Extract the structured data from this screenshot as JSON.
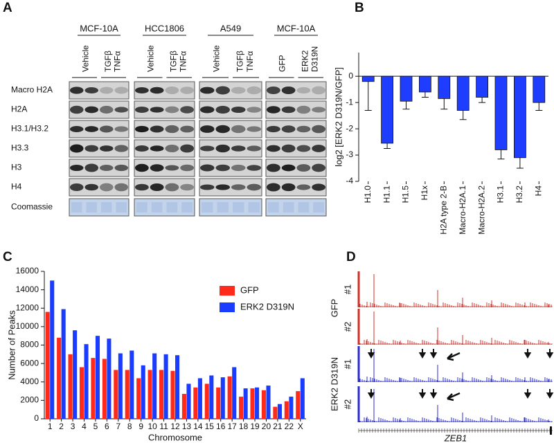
{
  "blot": {
    "panel_label": "A",
    "groups": [
      {
        "cell_line": "MCF-10A",
        "lanes": [
          "Vehicle",
          "TGFβ",
          "TNFα"
        ]
      },
      {
        "cell_line": "HCC1806",
        "lanes": [
          "Vehicle",
          "TGFβ",
          "TNFα"
        ]
      },
      {
        "cell_line": "A549",
        "lanes": [
          "Vehicle",
          "TGFβ",
          "TNFα"
        ]
      },
      {
        "cell_line": "MCF-10A",
        "lanes": [
          "GFP",
          "ERK2",
          "D319N"
        ]
      }
    ],
    "rows": [
      "Macro H2A",
      "H2A",
      "H3.1/H3.2",
      "H3.3",
      "H3",
      "H4",
      "Coomassie"
    ]
  },
  "chart_data": [
    {
      "type": "bar",
      "panel_label": "B",
      "ylabel": "log2 [ERK2 D319N/GFP]",
      "categories": [
        "H1.0",
        "H1.1",
        "H1.5",
        "H1x",
        "H2A type 2-B",
        "Macro-H2A.1",
        "Macro-H2A.2",
        "H3.1",
        "H3.2",
        "H4"
      ],
      "values": [
        -0.2,
        -2.55,
        -0.95,
        -0.6,
        -0.85,
        -1.3,
        -0.8,
        -2.8,
        -3.1,
        -1.0
      ],
      "errors": [
        1.1,
        0.2,
        0.3,
        0.2,
        0.4,
        0.35,
        0.2,
        0.35,
        0.4,
        0.3
      ],
      "color": "#1f3dff",
      "ylim": [
        -4,
        0.9
      ],
      "yticks": [
        0,
        -1,
        -2,
        -3,
        -4
      ]
    },
    {
      "type": "bar",
      "panel_label": "C",
      "xlabel": "Chromosome",
      "ylabel": "Number of Peaks",
      "categories": [
        "1",
        "2",
        "3",
        "4",
        "5",
        "6",
        "7",
        "8",
        "9",
        "10",
        "11",
        "12",
        "13",
        "14",
        "15",
        "16",
        "17",
        "18",
        "19",
        "20",
        "21",
        "22",
        "X"
      ],
      "series": [
        {
          "name": "GFP",
          "color": "#ff2a1a",
          "values": [
            11600,
            8800,
            7000,
            5600,
            6600,
            6500,
            5300,
            5300,
            4400,
            5300,
            5300,
            5200,
            2700,
            3400,
            3800,
            3400,
            4600,
            2400,
            3300,
            3100,
            1300,
            1900,
            3000
          ]
        },
        {
          "name": "ERK2 D319N",
          "color": "#1a3cff",
          "values": [
            15000,
            11900,
            9600,
            8100,
            9000,
            8700,
            7100,
            7400,
            5800,
            7100,
            7000,
            6900,
            3800,
            4400,
            4700,
            4500,
            5600,
            3300,
            3400,
            3600,
            1600,
            2400,
            4400
          ]
        }
      ],
      "legend": "upper right",
      "ylim": [
        0,
        16000
      ],
      "yticks": [
        0,
        2000,
        4000,
        6000,
        8000,
        10000,
        12000,
        14000,
        16000
      ]
    }
  ],
  "tracks": {
    "panel_label": "D",
    "conditions": [
      {
        "name": "GFP",
        "replicates": [
          "#1",
          "#2"
        ]
      },
      {
        "name": "ERK2 D319N",
        "replicates": [
          "#1",
          "#2"
        ]
      }
    ],
    "gene": "ZEB1"
  }
}
